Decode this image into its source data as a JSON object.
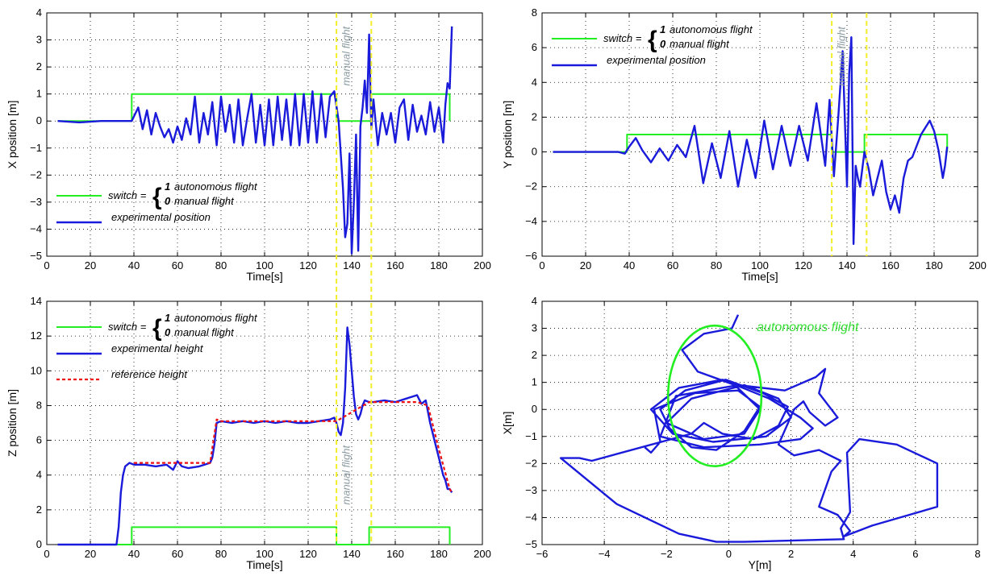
{
  "colors": {
    "switch": "#22ee22",
    "position": "#1a1adb",
    "reference": "#ee1111",
    "manual_marker": "#f2ee28",
    "annot_gray": "#8a9aa0",
    "annot_green": "#33dd33"
  },
  "manual_flight_interval": [
    133,
    149
  ],
  "chart_data": [
    {
      "id": "x",
      "type": "line",
      "xlabel": "Time[s]",
      "ylabel": "X position  [m]",
      "xlim": [
        0,
        200
      ],
      "ylim": [
        -5,
        4
      ],
      "xticks": [
        "0",
        "20",
        "40",
        "60",
        "80",
        "100",
        "120",
        "140",
        "160",
        "180",
        "200"
      ],
      "yticks": [
        "4",
        "3",
        "2",
        "1",
        "0",
        "−1",
        "−2",
        "−3",
        "−4",
        "−5"
      ],
      "grid": true,
      "legend": {
        "placement": "bottom-left",
        "switch_word": "switch =",
        "one": "1",
        "one_text": "autonomous flight",
        "zero": "0",
        "zero_text": "manual flight",
        "position_label": "experimental position"
      },
      "annotation": "manual flight",
      "series": [
        {
          "name": "switch",
          "x": [
            5,
            39,
            39,
            133,
            133,
            149,
            149,
            185,
            185
          ],
          "y": [
            0,
            0,
            1,
            1,
            0,
            0,
            1,
            1,
            0
          ]
        },
        {
          "name": "experimental position",
          "x": [
            5,
            15,
            25,
            35,
            39,
            42,
            44,
            46,
            48,
            50,
            52,
            54,
            56,
            58,
            60,
            62,
            64,
            66,
            68,
            70,
            72,
            74,
            76,
            78,
            80,
            82,
            84,
            86,
            88,
            90,
            92,
            94,
            96,
            98,
            100,
            102,
            104,
            106,
            108,
            110,
            112,
            114,
            116,
            118,
            120,
            122,
            124,
            126,
            128,
            130,
            132,
            134,
            136,
            137,
            138,
            139,
            140,
            141,
            142,
            143,
            144,
            145,
            146,
            147,
            148,
            149,
            150,
            152,
            154,
            156,
            158,
            160,
            162,
            164,
            166,
            168,
            170,
            172,
            174,
            176,
            178,
            180,
            182,
            183,
            184,
            185,
            186
          ],
          "y": [
            0,
            -0.05,
            0,
            0,
            0,
            0.5,
            -0.3,
            0.4,
            -0.5,
            0.3,
            -0.2,
            -0.6,
            -0.3,
            -0.8,
            -0.2,
            -0.7,
            0.1,
            -0.5,
            0.9,
            -0.8,
            0.3,
            -0.5,
            0.7,
            -0.9,
            0.9,
            -0.4,
            0.6,
            -0.8,
            0.8,
            -0.9,
            0.1,
            1.0,
            -0.8,
            0.6,
            -0.9,
            0.8,
            -0.9,
            0.9,
            -0.7,
            0.8,
            -0.9,
            1.0,
            -0.9,
            1.0,
            -0.8,
            1.1,
            -0.8,
            1.0,
            -0.6,
            0.9,
            1.1,
            0.0,
            -2.5,
            -4.3,
            -3.8,
            -1.2,
            -4.9,
            -3.0,
            -0.5,
            -4.8,
            -0.2,
            0.5,
            1.5,
            0.3,
            3.2,
            -0.3,
            0.8,
            -0.9,
            0.3,
            -0.5,
            0.3,
            -0.8,
            0.5,
            0.8,
            -0.7,
            0.6,
            -0.4,
            0.2,
            -0.5,
            0.7,
            -0.4,
            0.5,
            -0.8,
            0.6,
            1.4,
            1.2,
            3.5
          ]
        }
      ]
    },
    {
      "id": "y",
      "type": "line",
      "xlabel": "Time[s]",
      "ylabel": "Y position  [m]",
      "xlim": [
        0,
        200
      ],
      "ylim": [
        -6,
        8
      ],
      "xticks": [
        "0",
        "20",
        "40",
        "60",
        "80",
        "100",
        "120",
        "140",
        "160",
        "180",
        "200"
      ],
      "yticks": [
        "8",
        "6",
        "4",
        "2",
        "0",
        "−2",
        "−4",
        "−6"
      ],
      "grid": true,
      "legend": {
        "placement": "top-left",
        "switch_word": "switch =",
        "one": "1",
        "one_text": "autonomous flight",
        "zero": "0",
        "zero_text": "manual flight",
        "position_label": "experimental position"
      },
      "annotation": "manual flight",
      "series": [
        {
          "name": "switch",
          "x": [
            5,
            39,
            39,
            133,
            133,
            148,
            148,
            186,
            186
          ],
          "y": [
            0,
            0,
            1,
            1,
            0,
            0,
            1,
            1,
            0
          ]
        },
        {
          "name": "experimental position",
          "x": [
            5,
            20,
            35,
            38,
            40,
            43,
            46,
            50,
            54,
            58,
            62,
            66,
            70,
            74,
            78,
            82,
            86,
            90,
            94,
            98,
            102,
            106,
            110,
            114,
            118,
            122,
            126,
            130,
            132,
            134,
            136,
            138,
            140,
            141,
            142,
            143,
            144,
            145,
            146,
            148,
            150,
            152,
            154,
            156,
            158,
            160,
            162,
            164,
            166,
            168,
            170,
            174,
            178,
            180,
            182,
            184,
            185,
            186
          ],
          "y": [
            0,
            0,
            0,
            -0.1,
            0.3,
            0.8,
            0.1,
            -0.6,
            0.2,
            -0.5,
            0.4,
            -0.3,
            1.5,
            -1.8,
            0.5,
            -1.5,
            1.2,
            -2.0,
            0.7,
            -1.5,
            1.8,
            -1.0,
            1.5,
            -0.8,
            1.5,
            -0.5,
            2.8,
            -0.8,
            3.0,
            -1.4,
            2.0,
            5.8,
            -2.0,
            4.5,
            6.6,
            -5.3,
            -0.8,
            -1.5,
            -2.0,
            0.0,
            -1.0,
            -2.5,
            -1.5,
            -0.5,
            -2.3,
            -3.3,
            -2.5,
            -3.5,
            -1.5,
            -0.5,
            -0.3,
            1.0,
            1.8,
            1.2,
            0.1,
            -1.5,
            -0.8,
            0.3
          ]
        }
      ]
    },
    {
      "id": "z",
      "type": "line",
      "xlabel": "Time[s]",
      "ylabel": "Z position  [m]",
      "xlim": [
        0,
        200
      ],
      "ylim": [
        0,
        14
      ],
      "xticks": [
        "0",
        "20",
        "40",
        "60",
        "80",
        "100",
        "120",
        "140",
        "160",
        "180",
        "200"
      ],
      "yticks": [
        "14",
        "12",
        "10",
        "8",
        "6",
        "4",
        "2",
        "0"
      ],
      "grid": true,
      "legend": {
        "placement": "top-left",
        "switch_word": "switch =",
        "one": "1",
        "one_text": "autonomous flight",
        "zero": "0",
        "zero_text": "manual flight",
        "position_label": "experimental  height",
        "reference_label": "reference  height"
      },
      "annotation": "manual flight",
      "series": [
        {
          "name": "switch",
          "x": [
            5,
            39,
            39,
            133,
            133,
            148,
            148,
            185,
            185
          ],
          "y": [
            0,
            0,
            1,
            1,
            0,
            0,
            1,
            1,
            0
          ]
        },
        {
          "name": "experimental  height",
          "x": [
            5,
            32,
            33,
            34,
            35,
            36,
            38,
            40,
            45,
            50,
            55,
            58,
            60,
            62,
            65,
            70,
            75,
            76,
            77,
            78,
            80,
            85,
            90,
            95,
            100,
            105,
            110,
            115,
            120,
            125,
            130,
            132,
            133,
            134,
            135,
            136,
            137,
            138,
            139,
            140,
            141,
            142,
            143,
            144,
            145,
            146,
            148,
            150,
            155,
            160,
            165,
            170,
            172,
            174,
            176,
            178,
            180,
            182,
            183,
            184,
            185,
            186
          ],
          "y": [
            0,
            0,
            1.0,
            3.0,
            4.0,
            4.5,
            4.7,
            4.6,
            4.6,
            4.5,
            4.6,
            4.3,
            4.8,
            4.5,
            4.4,
            4.5,
            4.7,
            5.0,
            5.8,
            7.0,
            7.1,
            7.0,
            7.1,
            7.0,
            7.1,
            7.0,
            7.1,
            7.0,
            7.0,
            7.1,
            7.2,
            7.3,
            7.0,
            6.5,
            6.3,
            7.0,
            9.0,
            12.5,
            11.5,
            10.0,
            8.5,
            7.5,
            7.2,
            7.5,
            8.0,
            8.3,
            8.2,
            8.2,
            8.3,
            8.2,
            8.4,
            8.6,
            8.1,
            8.3,
            7.0,
            6.0,
            5.0,
            4.0,
            3.7,
            3.2,
            3.2,
            3.0
          ]
        },
        {
          "name": "reference  height",
          "x": [
            40,
            75,
            78,
            80,
            100,
            120,
            133,
            148,
            150,
            170,
            175,
            180,
            185,
            186
          ],
          "y": [
            4.7,
            4.7,
            7.2,
            7.1,
            7.1,
            7.1,
            7.1,
            8.2,
            8.2,
            8.2,
            8.0,
            5.5,
            3.2,
            3.0
          ]
        }
      ]
    },
    {
      "id": "xy",
      "type": "line",
      "xlabel": "Y[m]",
      "ylabel": "X[m]",
      "xlim": [
        -6,
        8
      ],
      "ylim": [
        -5,
        4
      ],
      "xticks": [
        "−6",
        "−4",
        "−2",
        "0",
        "2",
        "4",
        "6",
        "8"
      ],
      "yticks": [
        "4",
        "3",
        "2",
        "1",
        "0",
        "−1",
        "−2",
        "−3",
        "−4",
        "−5"
      ],
      "grid": true,
      "annotation": "autonomous flight",
      "ellipse": {
        "cx": -0.45,
        "cy": 0.5,
        "rx": 1.5,
        "ry": 2.6
      },
      "series": [
        {
          "name": "trajectory",
          "x": [
            0.3,
            0.1,
            -0.8,
            -1.5,
            -1.0,
            0.2,
            1.0,
            0.5,
            -0.8,
            -2.0,
            -1.2,
            0.5,
            1.6,
            2.0,
            1.2,
            -0.5,
            -1.8,
            -2.5,
            -1.6,
            -0.2,
            1.3,
            2.3,
            2.7,
            2.3,
            1.0,
            -0.8,
            -2.2,
            -1.7,
            0.3,
            1.8,
            2.8,
            3.1,
            2.9,
            3.3,
            3.5,
            3.1,
            2.6,
            2.4,
            2.1,
            1.6,
            2.1,
            2.9,
            3.6,
            3.3,
            2.9,
            3.5,
            3.9,
            3.7,
            4.6,
            5.8,
            6.7,
            6.7,
            5.4,
            4.2,
            3.8,
            3.9,
            3.6,
            3.7,
            0.5,
            -0.4,
            -1.6,
            -3.6,
            -5.4,
            -4.8,
            -4.4,
            -1.2,
            -0.8,
            -0.2,
            0.8,
            1.6,
            1.9,
            1.1,
            -0.1,
            -1.4,
            -2.2,
            -1.9,
            -1.2,
            -0.4,
            0.5,
            1.0,
            0.3,
            -1.1,
            -2.4,
            -2.2,
            -2.5,
            -2.7
          ],
          "y": [
            3.5,
            3.0,
            2.8,
            2.2,
            1.4,
            0.9,
            0.0,
            -0.9,
            -1.1,
            -0.5,
            0.4,
            0.9,
            0.4,
            -0.3,
            -1.0,
            -1.2,
            -0.9,
            0.0,
            0.8,
            1.1,
            0.4,
            -0.3,
            -0.7,
            -1.1,
            -1.3,
            -1.4,
            -1.0,
            0.5,
            0.9,
            0.7,
            1.2,
            1.5,
            0.6,
            0.0,
            -0.3,
            -0.6,
            -0.1,
            0.3,
            0.0,
            -1.3,
            -1.7,
            -1.5,
            -1.9,
            -2.3,
            -3.6,
            -3.9,
            -4.5,
            -4.7,
            -4.3,
            -3.9,
            -3.6,
            -2.0,
            -1.3,
            -1.1,
            -1.6,
            -3.8,
            -4.4,
            -4.8,
            -4.9,
            -4.9,
            -4.6,
            -3.5,
            -1.8,
            -1.8,
            -1.9,
            -0.9,
            -0.5,
            -0.9,
            -1.1,
            -0.6,
            0.1,
            0.6,
            1.1,
            0.7,
            0.0,
            -0.7,
            -1.4,
            -1.5,
            -0.8,
            0.1,
            0.7,
            0.6,
            0.0,
            -1.2,
            -1.6,
            -1.4
          ]
        }
      ]
    }
  ]
}
